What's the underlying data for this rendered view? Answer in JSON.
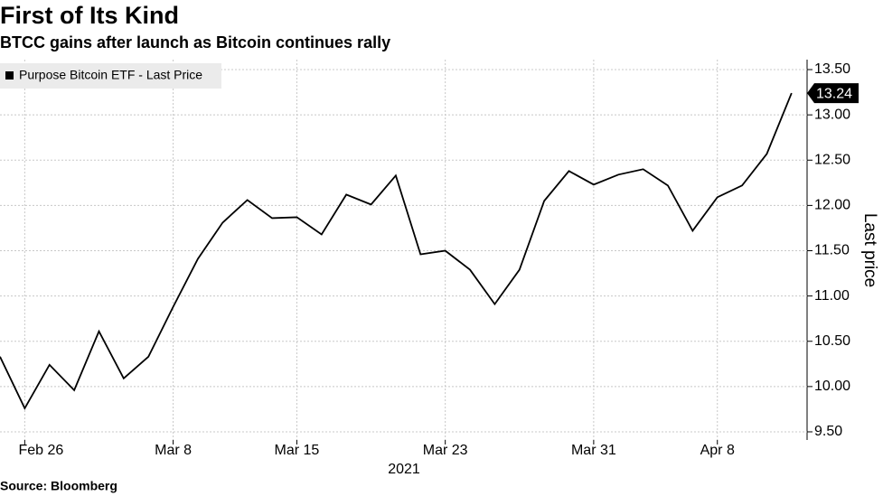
{
  "chart_data": {
    "type": "line",
    "title": "First of Its Kind",
    "subtitle": "BTCC gains after launch as Bitcoin continues rally",
    "source": "Source: Bloomberg",
    "x_label": "2021",
    "y_label": "Last price",
    "categories": [
      null,
      "Feb 26",
      null,
      null,
      null,
      null,
      null,
      "Mar 8",
      null,
      null,
      null,
      null,
      "Mar 15",
      null,
      null,
      null,
      null,
      null,
      "Mar 23",
      null,
      null,
      null,
      null,
      null,
      "Mar 31",
      null,
      null,
      null,
      null,
      "Apr 8",
      null,
      null,
      null
    ],
    "series": [
      {
        "name": "Purpose Bitcoin ETF - Last Price",
        "color": "#000000",
        "values": [
          10.33,
          9.76,
          10.24,
          9.96,
          10.61,
          10.09,
          10.33,
          10.88,
          11.41,
          11.81,
          12.06,
          11.86,
          11.87,
          11.68,
          12.12,
          12.01,
          12.33,
          11.46,
          11.5,
          11.29,
          10.91,
          11.29,
          12.05,
          12.38,
          12.23,
          12.34,
          12.4,
          12.22,
          11.72,
          12.09,
          12.22,
          12.57,
          13.24
        ]
      }
    ],
    "ylim": [
      9.41,
      13.61
    ],
    "yticks": [
      {
        "value": 9.5,
        "label": "9.50"
      },
      {
        "value": 10,
        "label": "10.00"
      },
      {
        "value": 10.5,
        "label": "10.50"
      },
      {
        "value": 11,
        "label": "11.00"
      },
      {
        "value": 11.5,
        "label": "11.50"
      },
      {
        "value": 12,
        "label": "12.00"
      },
      {
        "value": 12.5,
        "label": "12.50"
      },
      {
        "value": 13,
        "label": "13.00"
      },
      {
        "value": 13.5,
        "label": "13.50"
      }
    ],
    "grid": true,
    "legend": "top-left"
  }
}
